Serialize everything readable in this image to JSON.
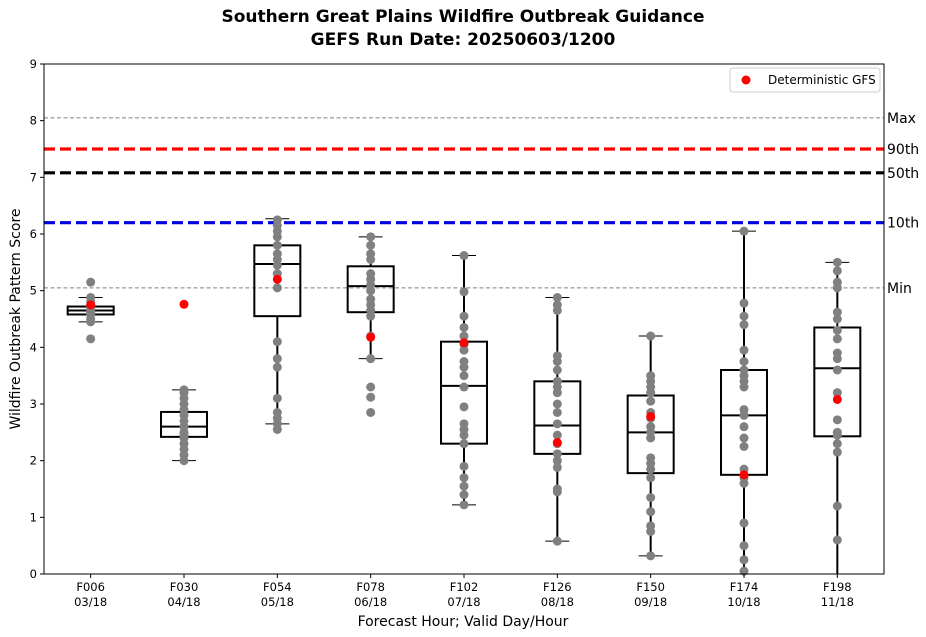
{
  "chart_data": {
    "type": "box",
    "title": "Southern Great Plains Wildfire Outbreak Guidance",
    "subtitle": "GEFS Run Date: 20250603/1200",
    "xlabel": "Forecast Hour; Valid Day/Hour",
    "ylabel": "Wildfire Outbreak Pattern Score",
    "ylim": [
      0,
      9
    ],
    "yticks": [
      "0",
      "1",
      "2",
      "3",
      "4",
      "5",
      "6",
      "7",
      "8",
      "9"
    ],
    "categories": [
      {
        "hour": "F006",
        "valid": "03/18"
      },
      {
        "hour": "F030",
        "valid": "04/18"
      },
      {
        "hour": "F054",
        "valid": "05/18"
      },
      {
        "hour": "F078",
        "valid": "06/18"
      },
      {
        "hour": "F102",
        "valid": "07/18"
      },
      {
        "hour": "F126",
        "valid": "08/18"
      },
      {
        "hour": "F150",
        "valid": "09/18"
      },
      {
        "hour": "F174",
        "valid": "10/18"
      },
      {
        "hour": "F198",
        "valid": "11/18"
      }
    ],
    "boxes": [
      {
        "whislo": 4.45,
        "q1": 4.58,
        "med": 4.65,
        "q3": 4.72,
        "whishi": 4.88
      },
      {
        "whislo": 2.0,
        "q1": 2.42,
        "med": 2.6,
        "q3": 2.86,
        "whishi": 3.25
      },
      {
        "whislo": 2.65,
        "q1": 4.55,
        "med": 5.47,
        "q3": 5.8,
        "whishi": 6.27
      },
      {
        "whislo": 3.8,
        "q1": 4.62,
        "med": 5.08,
        "q3": 5.43,
        "whishi": 5.95
      },
      {
        "whislo": 1.22,
        "q1": 2.3,
        "med": 3.32,
        "q3": 4.1,
        "whishi": 5.62
      },
      {
        "whislo": 0.58,
        "q1": 2.12,
        "med": 2.62,
        "q3": 3.4,
        "whishi": 4.88
      },
      {
        "whislo": 0.32,
        "q1": 1.78,
        "med": 2.5,
        "q3": 3.15,
        "whishi": 4.2
      },
      {
        "whislo": 0.0,
        "q1": 1.75,
        "med": 2.8,
        "q3": 3.6,
        "whishi": 6.05
      },
      {
        "whislo": 0.0,
        "q1": 2.43,
        "med": 3.63,
        "q3": 4.35,
        "whishi": 5.5
      }
    ],
    "members": [
      [
        4.15,
        4.45,
        4.5,
        4.58,
        4.6,
        4.62,
        4.65,
        4.67,
        4.7,
        4.72,
        4.75,
        4.8,
        4.88,
        5.15
      ],
      [
        2.0,
        2.1,
        2.2,
        2.3,
        2.4,
        2.45,
        2.5,
        2.6,
        2.7,
        2.8,
        2.9,
        3.0,
        3.1,
        3.2,
        3.25
      ],
      [
        2.55,
        2.65,
        2.75,
        2.85,
        3.1,
        3.65,
        3.8,
        4.1,
        5.05,
        5.3,
        5.45,
        5.55,
        5.65,
        5.8,
        5.95,
        6.05,
        6.15,
        6.25
      ],
      [
        2.85,
        3.12,
        3.3,
        3.8,
        4.2,
        4.55,
        4.65,
        4.75,
        4.85,
        5.0,
        5.1,
        5.2,
        5.3,
        5.55,
        5.65,
        5.8,
        5.95
      ],
      [
        1.22,
        1.4,
        1.55,
        1.7,
        1.9,
        2.3,
        2.45,
        2.55,
        2.65,
        2.95,
        3.3,
        3.5,
        3.65,
        3.75,
        3.95,
        4.05,
        4.2,
        4.35,
        4.55,
        4.98,
        5.62
      ],
      [
        0.58,
        1.45,
        1.5,
        1.88,
        2.0,
        2.12,
        2.3,
        2.45,
        2.65,
        2.85,
        3.0,
        3.2,
        3.3,
        3.4,
        3.6,
        3.75,
        3.85,
        4.65,
        4.75,
        4.88
      ],
      [
        0.32,
        0.75,
        0.85,
        1.1,
        1.35,
        1.7,
        1.85,
        1.95,
        2.05,
        2.4,
        2.5,
        2.6,
        2.75,
        2.85,
        3.05,
        3.2,
        3.3,
        3.4,
        3.5,
        4.2
      ],
      [
        0.05,
        0.25,
        0.5,
        0.9,
        1.6,
        1.7,
        1.85,
        2.25,
        2.4,
        2.6,
        2.8,
        2.9,
        3.3,
        3.4,
        3.5,
        3.6,
        3.75,
        3.95,
        4.4,
        4.55,
        4.78,
        6.05
      ],
      [
        0.6,
        1.2,
        2.15,
        2.3,
        2.45,
        2.5,
        2.72,
        3.2,
        3.6,
        3.8,
        3.9,
        4.15,
        4.3,
        4.5,
        4.62,
        5.05,
        5.15,
        5.35,
        5.5
      ]
    ],
    "deterministic": [
      4.75,
      4.76,
      5.2,
      4.18,
      4.08,
      2.32,
      2.78,
      1.75,
      3.08
    ],
    "reference_lines": [
      {
        "label": "Max",
        "value": 8.05,
        "color": "#808080",
        "style": "dashed-thin"
      },
      {
        "label": "90th",
        "value": 7.5,
        "color": "#ff0000",
        "style": "dashed-thick"
      },
      {
        "label": "50th",
        "value": 7.08,
        "color": "#000000",
        "style": "dashed-thick"
      },
      {
        "label": "10th",
        "value": 6.2,
        "color": "#0000dd",
        "style": "dashed-thick"
      },
      {
        "label": "Min",
        "value": 5.05,
        "color": "#808080",
        "style": "dashed-thin"
      }
    ],
    "legend": {
      "label": "Deterministic GFS",
      "position": "top-right"
    },
    "colors": {
      "members": "#808080",
      "deterministic": "#ff0000",
      "box": "#000000"
    }
  }
}
